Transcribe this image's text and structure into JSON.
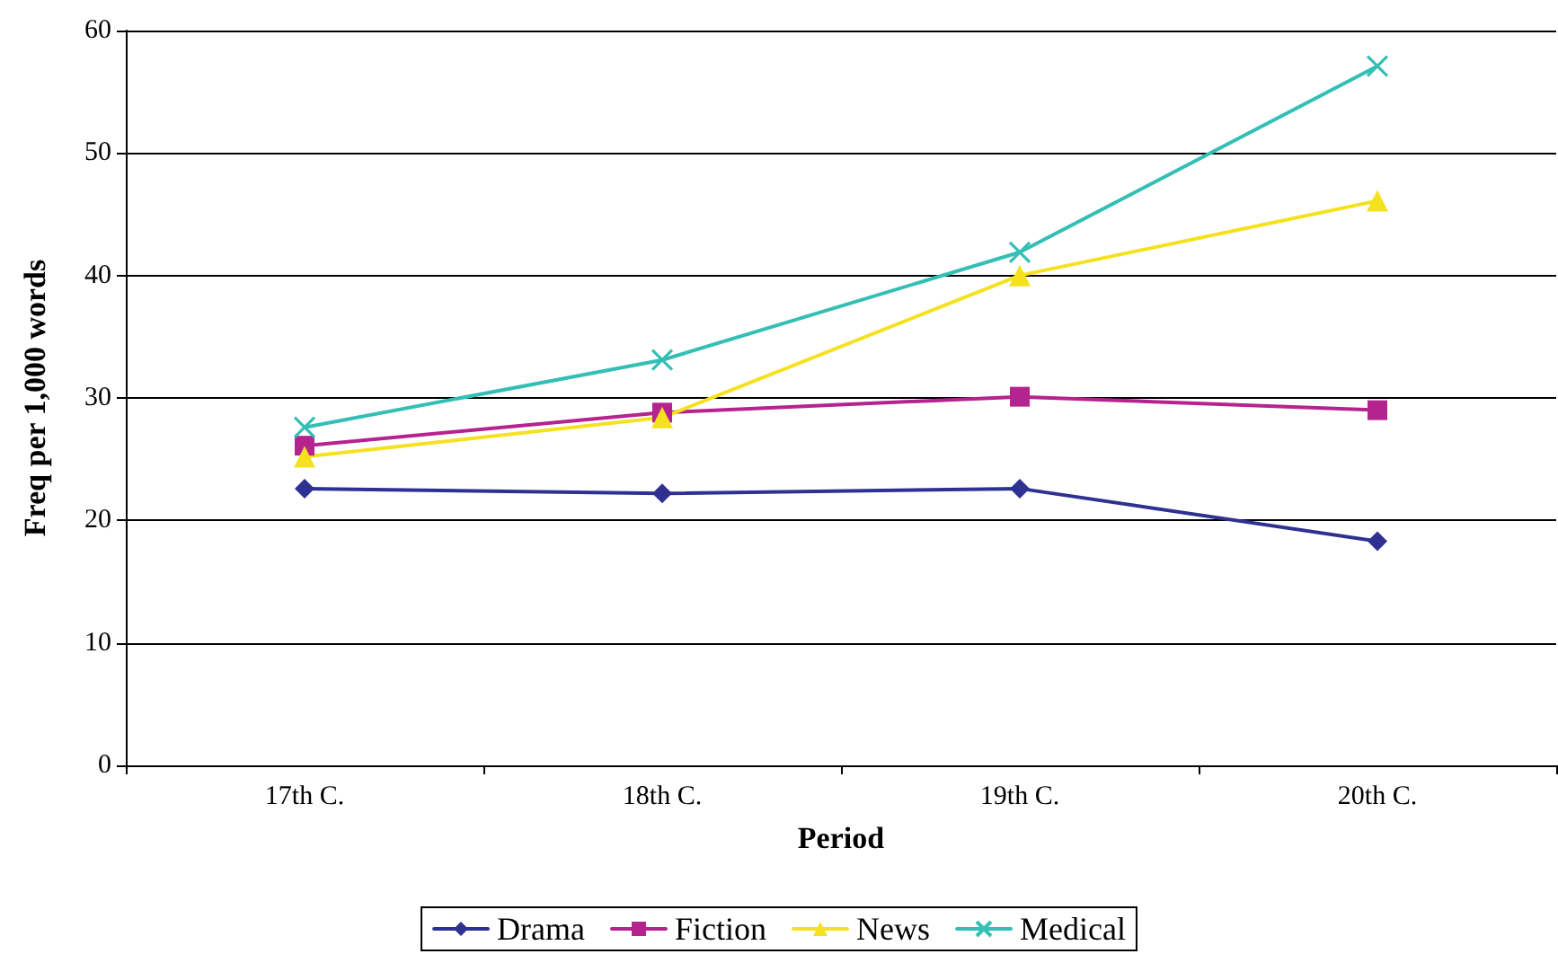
{
  "chart_data": {
    "type": "line",
    "xlabel": "Period",
    "ylabel": "Freq per 1,000 words",
    "categories": [
      "17th C.",
      "18th C.",
      "19th C.",
      "20th C."
    ],
    "series": [
      {
        "name": "Drama",
        "color": "#2e3192",
        "marker": "diamond",
        "values": [
          22.6,
          22.2,
          22.6,
          18.3
        ]
      },
      {
        "name": "Fiction",
        "color": "#b5238f",
        "marker": "square",
        "values": [
          26.1,
          28.8,
          30.1,
          29.0
        ]
      },
      {
        "name": "News",
        "color": "#f5e11e",
        "marker": "triangle",
        "values": [
          25.2,
          28.4,
          40.0,
          46.1
        ]
      },
      {
        "name": "Medical",
        "color": "#33bfb5",
        "marker": "cross",
        "values": [
          27.6,
          33.1,
          41.9,
          57.1
        ]
      }
    ],
    "ylim": [
      0,
      60
    ],
    "yticks": [
      0,
      10,
      20,
      30,
      40,
      50,
      60
    ],
    "grid": "y",
    "legend": "bottom",
    "line_style": "solid"
  }
}
